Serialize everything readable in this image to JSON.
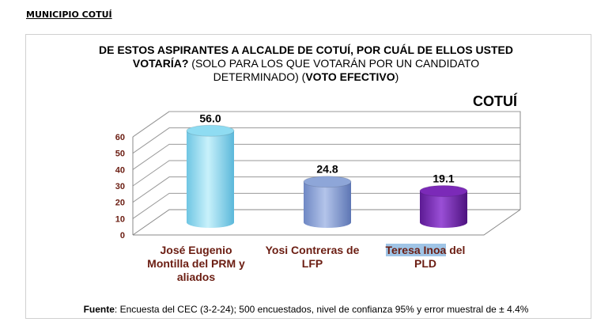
{
  "header": {
    "label": "MUNICIPIO COTUÍ"
  },
  "chart_title": {
    "line1": "DE ESTOS ASPIRANTES A ALCALDE DE COTUÍ, POR CUÁL DE ELLOS USTED",
    "line2_bold": "VOTARÍA?",
    "line2_rest": " (SOLO PARA LOS QUE VOTARÁN POR UN CANDIDATO",
    "line3_start": "DETERMINADO) (",
    "line3_bold": "VOTO EFECTIVO",
    "line3_end": ")"
  },
  "place_label": "COTUÍ",
  "categories": {
    "c1_line1": "José Eugenio",
    "c1_line2": "Montilla del PRM y",
    "c1_line3": "aliados",
    "c2_line1": "Yosi Contreras de",
    "c2_line2": "LFP",
    "c3_highlight": "Teresa Inoa",
    "c3_rest": " del",
    "c3_line2": "PLD"
  },
  "source": {
    "label": "Fuente",
    "text": ": Encuesta del CEC (3-2-24); 500 encuestados, nivel de confianza 95% y error muestral de ± 4.4%"
  },
  "chart_data": {
    "type": "bar",
    "categories": [
      "José Eugenio Montilla del PRM y aliados",
      "Yosi Contreras de LFP",
      "Teresa Inoa del PLD"
    ],
    "values": [
      56.0,
      24.8,
      19.1
    ],
    "data_labels": [
      "56.0",
      "24.8",
      "19.1"
    ],
    "y_ticks": [
      "0",
      "10",
      "20",
      "30",
      "40",
      "50",
      "60"
    ],
    "ylim": [
      0,
      60
    ],
    "grid": true,
    "colors": [
      "#8fdcf2",
      "#8ea6d8",
      "#7b2ab8"
    ]
  }
}
